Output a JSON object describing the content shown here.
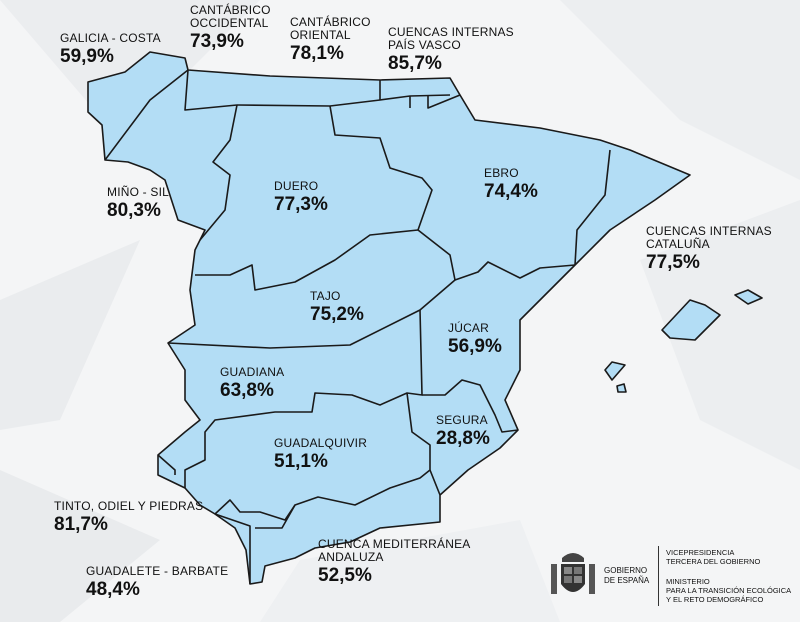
{
  "basins": [
    {
      "id": "galicia-costa",
      "name": "GALICIA - COSTA",
      "value": "59,9%"
    },
    {
      "id": "cantabrico-occidental",
      "name": "CANTÁBRICO\nOCCIDENTAL",
      "value": "73,9%"
    },
    {
      "id": "cantabrico-oriental",
      "name": "CANTÁBRICO\nORIENTAL",
      "value": "78,1%"
    },
    {
      "id": "cuencas-internas-pais-vasco",
      "name": "CUENCAS INTERNAS\nPAÍS VASCO",
      "value": "85,7%"
    },
    {
      "id": "mino-sil",
      "name": "MIÑO - SIL",
      "value": "80,3%"
    },
    {
      "id": "duero",
      "name": "DUERO",
      "value": "77,3%"
    },
    {
      "id": "ebro",
      "name": "EBRO",
      "value": "74,4%"
    },
    {
      "id": "cuencas-internas-cataluna",
      "name": "CUENCAS INTERNAS\nCATALUÑA",
      "value": "77,5%"
    },
    {
      "id": "tajo",
      "name": "TAJO",
      "value": "75,2%"
    },
    {
      "id": "jucar",
      "name": "JÚCAR",
      "value": "56,9%"
    },
    {
      "id": "guadiana",
      "name": "GUADIANA",
      "value": "63,8%"
    },
    {
      "id": "segura",
      "name": "SEGURA",
      "value": "28,8%"
    },
    {
      "id": "guadalquivir",
      "name": "GUADALQUIVIR",
      "value": "51,1%"
    },
    {
      "id": "tinto-odiel-piedras",
      "name": "TINTO, ODIEL Y PIEDRAS",
      "value": "81,7%"
    },
    {
      "id": "cuenca-mediterranea-andaluza",
      "name": "CUENCA MEDITERRÁNEA\nANDALUZA",
      "value": "52,5%"
    },
    {
      "id": "guadalete-barbate",
      "name": "GUADALETE - BARBATE",
      "value": "48,4%"
    }
  ],
  "footer": {
    "gobierno": "GOBIERNO\nDE ESPAÑA",
    "vicepresidencia": "VICEPRESIDENCIA\nTERCERA DEL GOBIERNO",
    "ministerio": "MINISTERIO\nPARA LA TRANSICIÓN ECOLÓGICA\nY EL RETO DEMOGRÁFICO"
  },
  "colors": {
    "basin_fill": "#b3ddf5",
    "border": "#1a1a1a",
    "background": "#f4f5f6"
  }
}
